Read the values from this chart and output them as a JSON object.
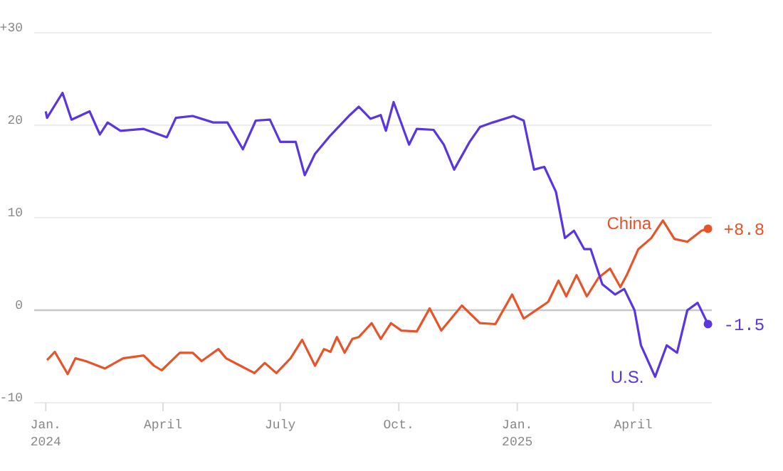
{
  "chart_data": {
    "type": "line",
    "xlim": [
      "2023-12-23",
      "2025-06-01"
    ],
    "xticks": [
      {
        "value": "2024-01-01",
        "label": "Jan.\n2024"
      },
      {
        "value": "2024-04-01",
        "label": "April"
      },
      {
        "value": "2024-07-01",
        "label": "July"
      },
      {
        "value": "2024-10-01",
        "label": "Oct."
      },
      {
        "value": "2025-01-01",
        "label": "Jan.\n2025"
      },
      {
        "value": "2025-04-01",
        "label": "April"
      }
    ],
    "ylim": [
      -10,
      30
    ],
    "yticks": [
      {
        "value": 30,
        "label": "+30"
      },
      20,
      10,
      0,
      -10
    ],
    "grid": "y",
    "legend": false,
    "marker": "none",
    "line_style": "solid",
    "ref_lines": [
      {
        "axis": "y",
        "value": 0,
        "color": "#c8c8c8"
      }
    ],
    "annotations": [
      {
        "text": "+8.8",
        "x": "2025-05-29",
        "y": 8.8
      },
      {
        "text": "-1.5",
        "x": "2025-05-29",
        "y": -1.5
      }
    ],
    "series": [
      {
        "name": "China",
        "color": "#e8542a",
        "x": [
          "2024-01-02",
          "2024-01-08",
          "2024-01-18",
          "2024-01-24",
          "2024-02-01",
          "2024-02-16",
          "2024-03-01",
          "2024-03-17",
          "2024-03-25",
          "2024-03-31",
          "2024-04-14",
          "2024-04-24",
          "2024-05-01",
          "2024-05-14",
          "2024-05-20",
          "2024-05-31",
          "2024-06-11",
          "2024-06-19",
          "2024-06-28",
          "2024-07-09",
          "2024-07-18",
          "2024-07-28",
          "2024-08-04",
          "2024-08-09",
          "2024-08-14",
          "2024-08-20",
          "2024-08-26",
          "2024-08-31",
          "2024-09-10",
          "2024-09-17",
          "2024-09-25",
          "2024-10-03",
          "2024-10-15",
          "2024-10-25",
          "2024-11-03",
          "2024-11-19",
          "2024-12-03",
          "2024-12-15",
          "2024-12-28",
          "2025-01-06",
          "2025-01-25",
          "2025-02-02",
          "2025-02-08",
          "2025-02-16",
          "2025-02-24",
          "2025-03-05",
          "2025-03-14",
          "2025-03-22",
          "2025-03-27",
          "2025-04-05",
          "2025-04-15",
          "2025-04-24",
          "2025-05-03",
          "2025-05-13",
          "2025-05-24",
          "2025-05-29"
        ],
        "values": [
          -5.4,
          -4.5,
          -6.9,
          -5.2,
          -5.5,
          -6.3,
          -5.2,
          -4.9,
          -6.0,
          -6.5,
          -4.6,
          -4.6,
          -5.5,
          -4.2,
          -5.2,
          -6.0,
          -6.8,
          -5.7,
          -6.8,
          -5.2,
          -3.2,
          -6.0,
          -4.2,
          -4.5,
          -2.9,
          -4.6,
          -3.1,
          -2.9,
          -1.4,
          -3.1,
          -1.4,
          -2.2,
          -2.3,
          0.2,
          -2.2,
          0.5,
          -1.4,
          -1.5,
          1.7,
          -0.9,
          0.9,
          3.2,
          1.5,
          3.8,
          1.5,
          3.5,
          4.5,
          2.5,
          3.8,
          6.6,
          7.8,
          9.7,
          7.7,
          7.4,
          8.6,
          8.8
        ]
      },
      {
        "name": "U.S.",
        "color": "#5a35e0",
        "x": [
          "2024-01-01",
          "2024-01-02",
          "2024-01-14",
          "2024-01-21",
          "2024-02-04",
          "2024-02-12",
          "2024-02-18",
          "2024-02-28",
          "2024-03-17",
          "2024-04-04",
          "2024-04-11",
          "2024-04-24",
          "2024-05-10",
          "2024-05-21",
          "2024-06-02",
          "2024-06-12",
          "2024-06-23",
          "2024-07-01",
          "2024-07-13",
          "2024-07-20",
          "2024-07-28",
          "2024-08-09",
          "2024-08-24",
          "2024-08-31",
          "2024-09-09",
          "2024-09-17",
          "2024-09-21",
          "2024-09-27",
          "2024-10-09",
          "2024-10-15",
          "2024-10-28",
          "2024-11-05",
          "2024-11-13",
          "2024-11-25",
          "2024-12-03",
          "2024-12-13",
          "2024-12-29",
          "2025-01-06",
          "2025-01-14",
          "2025-01-22",
          "2025-01-31",
          "2025-02-07",
          "2025-02-14",
          "2025-02-22",
          "2025-02-27",
          "2025-03-08",
          "2025-03-18",
          "2025-03-25",
          "2025-04-02",
          "2025-04-07",
          "2025-04-18",
          "2025-04-27",
          "2025-05-05",
          "2025-05-13",
          "2025-05-21",
          "2025-05-29"
        ],
        "values": [
          21.5,
          20.8,
          23.5,
          20.6,
          21.5,
          19.0,
          20.3,
          19.4,
          19.6,
          18.7,
          20.8,
          21.0,
          20.3,
          20.3,
          17.4,
          20.5,
          20.6,
          18.2,
          18.2,
          14.6,
          16.9,
          18.9,
          21.1,
          22.0,
          20.7,
          21.1,
          19.4,
          22.5,
          17.9,
          19.6,
          19.5,
          17.9,
          15.2,
          18.2,
          19.8,
          20.3,
          21.0,
          20.5,
          15.2,
          15.5,
          12.8,
          7.8,
          8.6,
          6.6,
          6.6,
          2.8,
          1.7,
          2.3,
          0.0,
          -3.8,
          -7.2,
          -3.8,
          -4.6,
          0.0,
          0.8,
          -1.5
        ]
      }
    ]
  }
}
